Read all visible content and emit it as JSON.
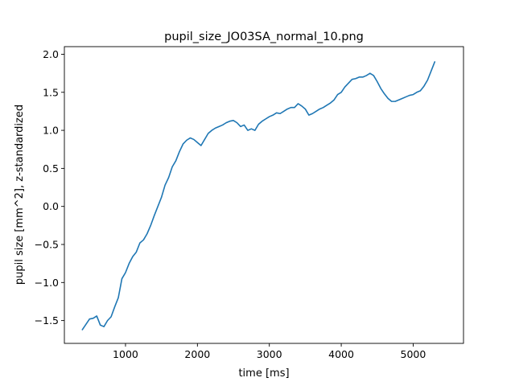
{
  "chart_data": {
    "type": "line",
    "title": "pupil_size_JO03SA_normal_10.png",
    "xlabel": "time [ms]",
    "ylabel": "pupil size [mm^2], z-standardized",
    "xlim": [
      150,
      5700
    ],
    "ylim": [
      -1.8,
      2.1
    ],
    "x_ticks": [
      {
        "value": 1000,
        "label": "1000"
      },
      {
        "value": 2000,
        "label": "2000"
      },
      {
        "value": 3000,
        "label": "3000"
      },
      {
        "value": 4000,
        "label": "4000"
      },
      {
        "value": 5000,
        "label": "5000"
      }
    ],
    "y_ticks": [
      {
        "value": -1.5,
        "label": "−1.5"
      },
      {
        "value": -1.0,
        "label": "−1.0"
      },
      {
        "value": -0.5,
        "label": "−0.5"
      },
      {
        "value": 0.0,
        "label": "0.0"
      },
      {
        "value": 0.5,
        "label": "0.5"
      },
      {
        "value": 1.0,
        "label": "1.0"
      },
      {
        "value": 1.5,
        "label": "1.5"
      },
      {
        "value": 2.0,
        "label": "2.0"
      }
    ],
    "grid": false,
    "legend": "none",
    "series": [
      {
        "color": "#1f77b4",
        "x": [
          400,
          450,
          500,
          550,
          600,
          650,
          700,
          750,
          800,
          850,
          900,
          950,
          1000,
          1050,
          1100,
          1150,
          1200,
          1250,
          1300,
          1350,
          1400,
          1450,
          1500,
          1550,
          1600,
          1650,
          1700,
          1750,
          1800,
          1850,
          1900,
          1950,
          2000,
          2050,
          2100,
          2150,
          2200,
          2250,
          2300,
          2350,
          2400,
          2450,
          2500,
          2550,
          2600,
          2650,
          2700,
          2750,
          2800,
          2850,
          2900,
          2950,
          3000,
          3050,
          3100,
          3150,
          3200,
          3250,
          3300,
          3350,
          3400,
          3450,
          3500,
          3550,
          3600,
          3650,
          3700,
          3750,
          3800,
          3850,
          3900,
          3950,
          4000,
          4050,
          4100,
          4150,
          4200,
          4250,
          4300,
          4350,
          4400,
          4450,
          4500,
          4550,
          4600,
          4650,
          4700,
          4750,
          4800,
          4850,
          4900,
          4950,
          5000,
          5050,
          5100,
          5150,
          5200,
          5250,
          5300
        ],
        "y": [
          -1.62,
          -1.55,
          -1.48,
          -1.47,
          -1.44,
          -1.56,
          -1.58,
          -1.5,
          -1.45,
          -1.32,
          -1.2,
          -0.95,
          -0.87,
          -0.75,
          -0.66,
          -0.6,
          -0.48,
          -0.44,
          -0.36,
          -0.25,
          -0.12,
          0.0,
          0.12,
          0.28,
          0.38,
          0.52,
          0.6,
          0.72,
          0.82,
          0.87,
          0.9,
          0.88,
          0.84,
          0.8,
          0.88,
          0.96,
          1.0,
          1.03,
          1.05,
          1.07,
          1.1,
          1.12,
          1.13,
          1.1,
          1.05,
          1.07,
          1.0,
          1.02,
          1.0,
          1.08,
          1.12,
          1.15,
          1.18,
          1.2,
          1.23,
          1.22,
          1.25,
          1.28,
          1.3,
          1.3,
          1.35,
          1.32,
          1.28,
          1.2,
          1.22,
          1.25,
          1.28,
          1.3,
          1.33,
          1.36,
          1.4,
          1.47,
          1.5,
          1.57,
          1.62,
          1.67,
          1.68,
          1.7,
          1.7,
          1.72,
          1.75,
          1.72,
          1.64,
          1.55,
          1.48,
          1.42,
          1.38,
          1.38,
          1.4,
          1.42,
          1.44,
          1.46,
          1.47,
          1.5,
          1.52,
          1.58,
          1.66,
          1.78,
          1.9
        ]
      }
    ]
  }
}
